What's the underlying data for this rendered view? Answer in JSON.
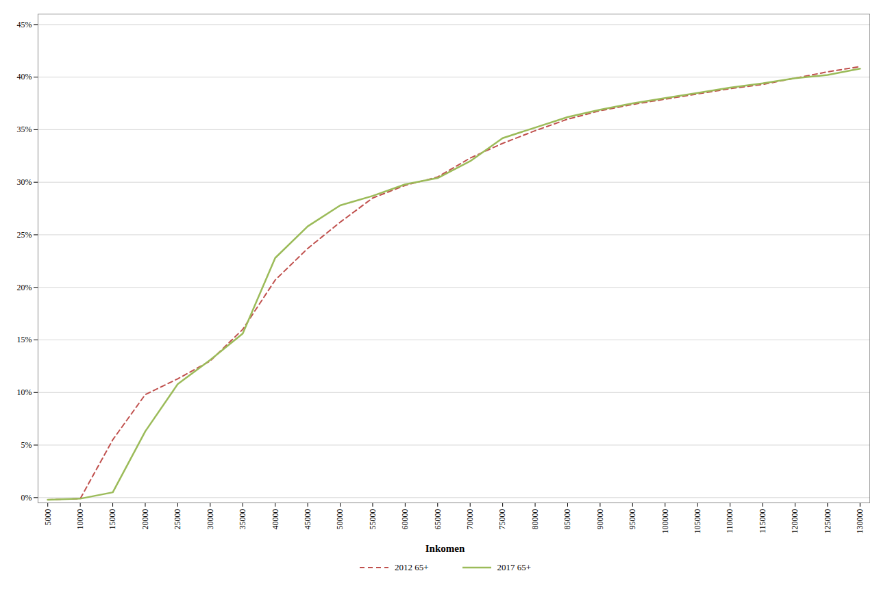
{
  "chart_data": {
    "type": "line",
    "xlabel": "Inkomen",
    "x": [
      5000,
      10000,
      15000,
      20000,
      25000,
      30000,
      35000,
      40000,
      45000,
      50000,
      55000,
      60000,
      65000,
      70000,
      75000,
      80000,
      85000,
      90000,
      95000,
      100000,
      105000,
      110000,
      115000,
      120000,
      125000,
      130000
    ],
    "series": [
      {
        "name": "2012 65+",
        "color": "#C0504D",
        "line_style": "dashed",
        "values": [
          -0.002,
          -0.001,
          0.055,
          0.098,
          0.113,
          0.13,
          0.16,
          0.207,
          0.237,
          0.262,
          0.285,
          0.297,
          0.305,
          0.323,
          0.337,
          0.349,
          0.36,
          0.368,
          0.374,
          0.379,
          0.384,
          0.389,
          0.393,
          0.399,
          0.405,
          0.41
        ]
      },
      {
        "name": "2017 65+",
        "color": "#9BBB59",
        "line_style": "solid",
        "values": [
          -0.002,
          -0.001,
          0.005,
          0.063,
          0.108,
          0.131,
          0.156,
          0.228,
          0.258,
          0.278,
          0.287,
          0.298,
          0.304,
          0.32,
          0.342,
          0.352,
          0.362,
          0.369,
          0.375,
          0.38,
          0.385,
          0.39,
          0.394,
          0.399,
          0.402,
          0.408
        ]
      }
    ],
    "xlim": [
      3500,
      131500
    ],
    "xticks": [
      5000,
      10000,
      15000,
      20000,
      25000,
      30000,
      35000,
      40000,
      45000,
      50000,
      55000,
      60000,
      65000,
      70000,
      75000,
      80000,
      85000,
      90000,
      95000,
      100000,
      105000,
      110000,
      115000,
      120000,
      125000,
      130000
    ],
    "ylim": [
      -0.005,
      0.46
    ],
    "yticks": [
      {
        "value": 0.0,
        "label": "0%"
      },
      {
        "value": 0.05,
        "label": "5%"
      },
      {
        "value": 0.1,
        "label": "10%"
      },
      {
        "value": 0.15,
        "label": "15%"
      },
      {
        "value": 0.2,
        "label": "20%"
      },
      {
        "value": 0.25,
        "label": "25%"
      },
      {
        "value": 0.3,
        "label": "30%"
      },
      {
        "value": 0.35,
        "label": "35%"
      },
      {
        "value": 0.4,
        "label": "40%"
      },
      {
        "value": 0.45,
        "label": "45%"
      }
    ],
    "grid": true,
    "legend": "bottom"
  }
}
